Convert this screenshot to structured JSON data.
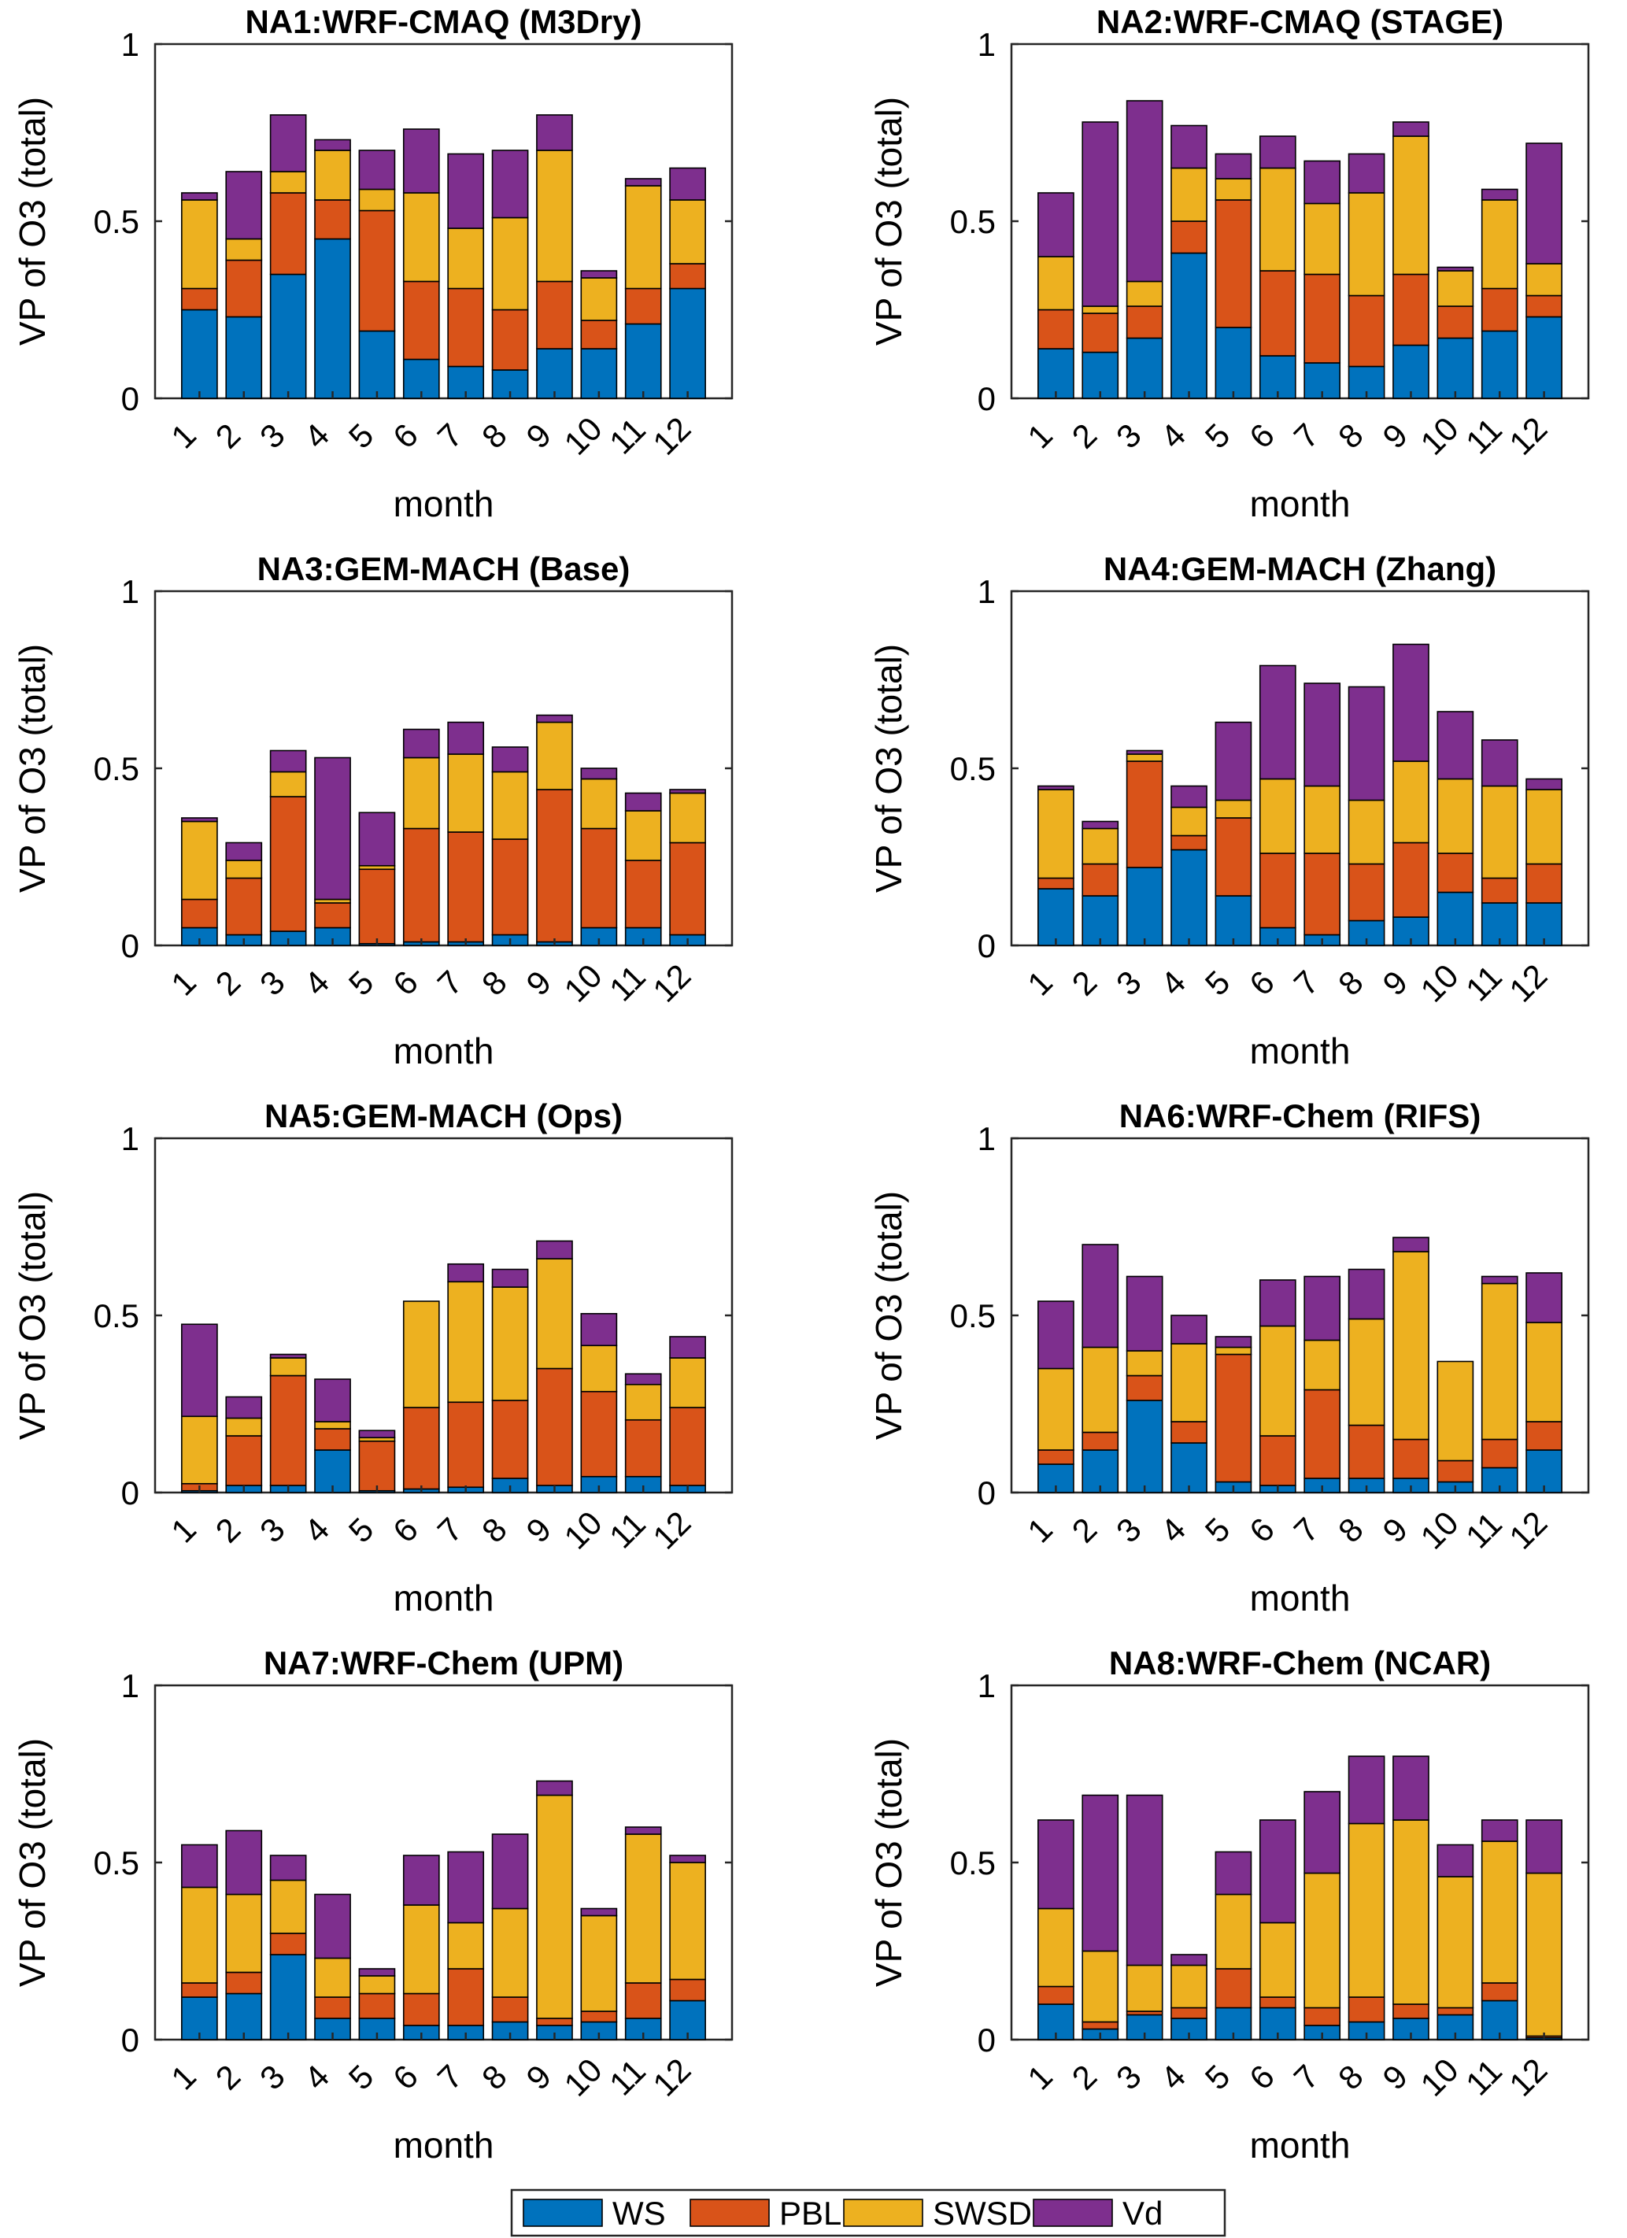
{
  "figure": {
    "legend": {
      "placement": "bottom-center",
      "items": [
        {
          "key": "WS",
          "label": "WS",
          "color": "#0072BD"
        },
        {
          "key": "PBL",
          "label": "PBL",
          "color": "#D95319"
        },
        {
          "key": "SWSD",
          "label": "SWSD",
          "color": "#EDB120"
        },
        {
          "key": "Vd",
          "label": "Vd",
          "color": "#7E2F8E"
        }
      ]
    }
  },
  "chart_data": [
    {
      "type": "bar",
      "stacked": true,
      "title": "NA1:WRF-CMAQ (M3Dry)",
      "xlabel": "month",
      "ylabel": "VP of O3 (total)",
      "ylim": [
        0,
        1
      ],
      "yticks": [
        "0",
        "0.5",
        "1"
      ],
      "categories": [
        "1",
        "2",
        "3",
        "4",
        "5",
        "6",
        "7",
        "8",
        "9",
        "10",
        "11",
        "12"
      ],
      "series": [
        {
          "name": "WS",
          "values": [
            0.25,
            0.23,
            0.35,
            0.45,
            0.19,
            0.11,
            0.09,
            0.08,
            0.14,
            0.14,
            0.21,
            0.31
          ]
        },
        {
          "name": "PBL",
          "values": [
            0.06,
            0.16,
            0.23,
            0.11,
            0.34,
            0.22,
            0.22,
            0.17,
            0.19,
            0.08,
            0.1,
            0.07
          ]
        },
        {
          "name": "SWSD",
          "values": [
            0.25,
            0.06,
            0.06,
            0.14,
            0.06,
            0.25,
            0.17,
            0.26,
            0.37,
            0.12,
            0.29,
            0.18
          ]
        },
        {
          "name": "Vd",
          "values": [
            0.02,
            0.19,
            0.16,
            0.03,
            0.11,
            0.18,
            0.21,
            0.19,
            0.1,
            0.02,
            0.02,
            0.09
          ]
        }
      ]
    },
    {
      "type": "bar",
      "stacked": true,
      "title": "NA2:WRF-CMAQ (STAGE)",
      "xlabel": "month",
      "ylabel": "VP of O3 (total)",
      "ylim": [
        0,
        1
      ],
      "yticks": [
        "0",
        "0.5",
        "1"
      ],
      "categories": [
        "1",
        "2",
        "3",
        "4",
        "5",
        "6",
        "7",
        "8",
        "9",
        "10",
        "11",
        "12"
      ],
      "series": [
        {
          "name": "WS",
          "values": [
            0.14,
            0.13,
            0.17,
            0.41,
            0.2,
            0.12,
            0.1,
            0.09,
            0.15,
            0.17,
            0.19,
            0.23
          ]
        },
        {
          "name": "PBL",
          "values": [
            0.11,
            0.11,
            0.09,
            0.09,
            0.36,
            0.24,
            0.25,
            0.2,
            0.2,
            0.09,
            0.12,
            0.06
          ]
        },
        {
          "name": "SWSD",
          "values": [
            0.15,
            0.02,
            0.07,
            0.15,
            0.06,
            0.29,
            0.2,
            0.29,
            0.39,
            0.1,
            0.25,
            0.09
          ]
        },
        {
          "name": "Vd",
          "values": [
            0.18,
            0.52,
            0.51,
            0.12,
            0.07,
            0.09,
            0.12,
            0.11,
            0.04,
            0.01,
            0.03,
            0.34
          ]
        }
      ]
    },
    {
      "type": "bar",
      "stacked": true,
      "title": "NA3:GEM-MACH (Base)",
      "xlabel": "month",
      "ylabel": "VP of O3 (total)",
      "ylim": [
        0,
        1
      ],
      "yticks": [
        "0",
        "0.5",
        "1"
      ],
      "categories": [
        "1",
        "2",
        "3",
        "4",
        "5",
        "6",
        "7",
        "8",
        "9",
        "10",
        "11",
        "12"
      ],
      "series": [
        {
          "name": "WS",
          "values": [
            0.05,
            0.03,
            0.04,
            0.05,
            0.005,
            0.01,
            0.01,
            0.03,
            0.01,
            0.05,
            0.05,
            0.03
          ]
        },
        {
          "name": "PBL",
          "values": [
            0.08,
            0.16,
            0.38,
            0.07,
            0.21,
            0.32,
            0.31,
            0.27,
            0.43,
            0.28,
            0.19,
            0.26
          ]
        },
        {
          "name": "SWSD",
          "values": [
            0.22,
            0.05,
            0.07,
            0.01,
            0.01,
            0.2,
            0.22,
            0.19,
            0.19,
            0.14,
            0.14,
            0.14
          ]
        },
        {
          "name": "Vd",
          "values": [
            0.01,
            0.05,
            0.06,
            0.4,
            0.15,
            0.08,
            0.09,
            0.07,
            0.02,
            0.03,
            0.05,
            0.01
          ]
        }
      ]
    },
    {
      "type": "bar",
      "stacked": true,
      "title": "NA4:GEM-MACH (Zhang)",
      "xlabel": "month",
      "ylabel": "VP of O3 (total)",
      "ylim": [
        0,
        1
      ],
      "yticks": [
        "0",
        "0.5",
        "1"
      ],
      "categories": [
        "1",
        "2",
        "3",
        "4",
        "5",
        "6",
        "7",
        "8",
        "9",
        "10",
        "11",
        "12"
      ],
      "series": [
        {
          "name": "WS",
          "values": [
            0.16,
            0.14,
            0.22,
            0.27,
            0.14,
            0.05,
            0.03,
            0.07,
            0.08,
            0.15,
            0.12,
            0.12
          ]
        },
        {
          "name": "PBL",
          "values": [
            0.03,
            0.09,
            0.3,
            0.04,
            0.22,
            0.21,
            0.23,
            0.16,
            0.21,
            0.11,
            0.07,
            0.11
          ]
        },
        {
          "name": "SWSD",
          "values": [
            0.25,
            0.1,
            0.02,
            0.08,
            0.05,
            0.21,
            0.19,
            0.18,
            0.23,
            0.21,
            0.26,
            0.21
          ]
        },
        {
          "name": "Vd",
          "values": [
            0.01,
            0.02,
            0.01,
            0.06,
            0.22,
            0.32,
            0.29,
            0.32,
            0.33,
            0.19,
            0.13,
            0.03
          ]
        }
      ]
    },
    {
      "type": "bar",
      "stacked": true,
      "title": "NA5:GEM-MACH (Ops)",
      "xlabel": "month",
      "ylabel": "VP of O3 (total)",
      "ylim": [
        0,
        1
      ],
      "yticks": [
        "0",
        "0.5",
        "1"
      ],
      "categories": [
        "1",
        "2",
        "3",
        "4",
        "5",
        "6",
        "7",
        "8",
        "9",
        "10",
        "11",
        "12"
      ],
      "series": [
        {
          "name": "WS",
          "values": [
            0.005,
            0.02,
            0.02,
            0.12,
            0.005,
            0.01,
            0.015,
            0.04,
            0.02,
            0.045,
            0.045,
            0.02
          ]
        },
        {
          "name": "PBL",
          "values": [
            0.02,
            0.14,
            0.31,
            0.06,
            0.14,
            0.23,
            0.24,
            0.22,
            0.33,
            0.24,
            0.16,
            0.22
          ]
        },
        {
          "name": "SWSD",
          "values": [
            0.19,
            0.05,
            0.05,
            0.02,
            0.01,
            0.3,
            0.34,
            0.32,
            0.31,
            0.13,
            0.1,
            0.14
          ]
        },
        {
          "name": "Vd",
          "values": [
            0.26,
            0.06,
            0.01,
            0.12,
            0.02,
            0.0,
            0.05,
            0.05,
            0.05,
            0.09,
            0.03,
            0.06
          ]
        }
      ]
    },
    {
      "type": "bar",
      "stacked": true,
      "title": "NA6:WRF-Chem (RIFS)",
      "xlabel": "month",
      "ylabel": "VP of O3 (total)",
      "ylim": [
        0,
        1
      ],
      "yticks": [
        "0",
        "0.5",
        "1"
      ],
      "categories": [
        "1",
        "2",
        "3",
        "4",
        "5",
        "6",
        "7",
        "8",
        "9",
        "10",
        "11",
        "12"
      ],
      "series": [
        {
          "name": "WS",
          "values": [
            0.08,
            0.12,
            0.26,
            0.14,
            0.03,
            0.02,
            0.04,
            0.04,
            0.04,
            0.03,
            0.07,
            0.12
          ]
        },
        {
          "name": "PBL",
          "values": [
            0.04,
            0.05,
            0.07,
            0.06,
            0.36,
            0.14,
            0.25,
            0.15,
            0.11,
            0.06,
            0.08,
            0.08
          ]
        },
        {
          "name": "SWSD",
          "values": [
            0.23,
            0.24,
            0.07,
            0.22,
            0.02,
            0.31,
            0.14,
            0.3,
            0.53,
            0.28,
            0.44,
            0.28
          ]
        },
        {
          "name": "Vd",
          "values": [
            0.19,
            0.29,
            0.21,
            0.08,
            0.03,
            0.13,
            0.18,
            0.14,
            0.04,
            0.0,
            0.02,
            0.14
          ]
        }
      ]
    },
    {
      "type": "bar",
      "stacked": true,
      "title": "NA7:WRF-Chem (UPM)",
      "xlabel": "month",
      "ylabel": "VP of O3 (total)",
      "ylim": [
        0,
        1
      ],
      "yticks": [
        "0",
        "0.5",
        "1"
      ],
      "categories": [
        "1",
        "2",
        "3",
        "4",
        "5",
        "6",
        "7",
        "8",
        "9",
        "10",
        "11",
        "12"
      ],
      "series": [
        {
          "name": "WS",
          "values": [
            0.12,
            0.13,
            0.24,
            0.06,
            0.06,
            0.04,
            0.04,
            0.05,
            0.04,
            0.05,
            0.06,
            0.11
          ]
        },
        {
          "name": "PBL",
          "values": [
            0.04,
            0.06,
            0.06,
            0.06,
            0.07,
            0.09,
            0.16,
            0.07,
            0.02,
            0.03,
            0.1,
            0.06
          ]
        },
        {
          "name": "SWSD",
          "values": [
            0.27,
            0.22,
            0.15,
            0.11,
            0.05,
            0.25,
            0.13,
            0.25,
            0.63,
            0.27,
            0.42,
            0.33
          ]
        },
        {
          "name": "Vd",
          "values": [
            0.12,
            0.18,
            0.07,
            0.18,
            0.02,
            0.14,
            0.2,
            0.21,
            0.04,
            0.02,
            0.02,
            0.02
          ]
        }
      ]
    },
    {
      "type": "bar",
      "stacked": true,
      "title": "NA8:WRF-Chem (NCAR)",
      "xlabel": "month",
      "ylabel": "VP of O3 (total)",
      "ylim": [
        0,
        1
      ],
      "yticks": [
        "0",
        "0.5",
        "1"
      ],
      "categories": [
        "1",
        "2",
        "3",
        "4",
        "5",
        "6",
        "7",
        "8",
        "9",
        "10",
        "11",
        "12"
      ],
      "series": [
        {
          "name": "WS",
          "values": [
            0.1,
            0.03,
            0.07,
            0.06,
            0.09,
            0.09,
            0.04,
            0.05,
            0.06,
            0.07,
            0.11,
            0.005
          ]
        },
        {
          "name": "PBL",
          "values": [
            0.05,
            0.02,
            0.01,
            0.03,
            0.11,
            0.03,
            0.05,
            0.07,
            0.04,
            0.02,
            0.05,
            0.005
          ]
        },
        {
          "name": "SWSD",
          "values": [
            0.22,
            0.2,
            0.13,
            0.12,
            0.21,
            0.21,
            0.38,
            0.49,
            0.52,
            0.37,
            0.4,
            0.46
          ]
        },
        {
          "name": "Vd",
          "values": [
            0.25,
            0.44,
            0.48,
            0.03,
            0.12,
            0.29,
            0.23,
            0.19,
            0.18,
            0.09,
            0.06,
            0.15
          ]
        }
      ]
    }
  ]
}
